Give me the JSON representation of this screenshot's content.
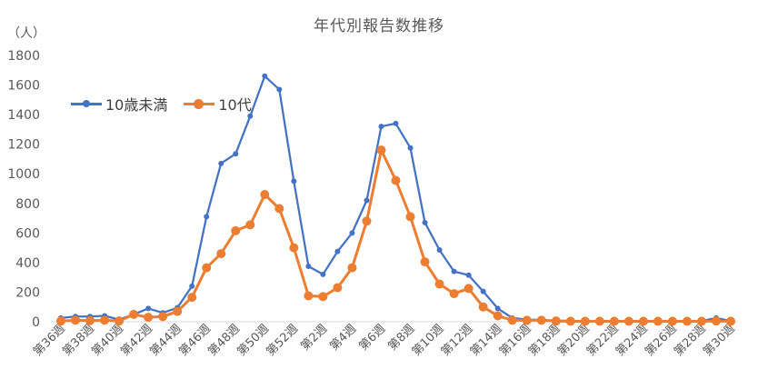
{
  "chart_data": {
    "type": "line",
    "title": "年代別報告数推移",
    "y_unit_label": "（人）",
    "ylim": [
      0,
      1800
    ],
    "yticks": [
      0,
      200,
      400,
      600,
      800,
      1000,
      1200,
      1400,
      1600,
      1800
    ],
    "grid": false,
    "legend_position": "top-left",
    "categories": [
      "第36週",
      "第37週",
      "第38週",
      "第39週",
      "第40週",
      "第41週",
      "第42週",
      "第43週",
      "第44週",
      "第45週",
      "第46週",
      "第47週",
      "第48週",
      "第49週",
      "第50週",
      "第51週",
      "第52週",
      "第1週",
      "第2週",
      "第3週",
      "第4週",
      "第5週",
      "第6週",
      "第7週",
      "第8週",
      "第9週",
      "第10週",
      "第11週",
      "第12週",
      "第13週",
      "第14週",
      "第15週",
      "第16週",
      "第17週",
      "第18週",
      "第19週",
      "第20週",
      "第21週",
      "第22週",
      "第23週",
      "第24週",
      "第25週",
      "第26週",
      "第27週",
      "第28週",
      "第29週",
      "第30週"
    ],
    "x_tick_labels": [
      "第36週",
      "",
      "第38週",
      "",
      "第40週",
      "",
      "第42週",
      "",
      "第44週",
      "",
      "第46週",
      "",
      "第48週",
      "",
      "第50週",
      "",
      "第52週",
      "",
      "第2週",
      "",
      "第4週",
      "",
      "第6週",
      "",
      "第8週",
      "",
      "第10週",
      "",
      "第12週",
      "",
      "第14週",
      "",
      "第16週",
      "",
      "第18週",
      "",
      "第20週",
      "",
      "第22週",
      "",
      "第24週",
      "",
      "第26週",
      "",
      "第28週",
      "",
      "第30週"
    ],
    "series": [
      {
        "name": "10歳未満",
        "color": "#4472C4",
        "values": [
          25,
          35,
          35,
          40,
          15,
          50,
          90,
          60,
          95,
          240,
          710,
          1070,
          1135,
          1390,
          1660,
          1570,
          950,
          375,
          320,
          475,
          600,
          820,
          1320,
          1340,
          1175,
          670,
          485,
          340,
          315,
          205,
          90,
          25,
          15,
          12,
          8,
          6,
          5,
          5,
          5,
          5,
          5,
          5,
          5,
          5,
          5,
          25,
          5
        ]
      },
      {
        "name": "10代",
        "color": "#ED7D31",
        "values": [
          5,
          10,
          8,
          10,
          5,
          50,
          30,
          35,
          70,
          165,
          365,
          460,
          615,
          655,
          860,
          765,
          500,
          175,
          170,
          230,
          365,
          680,
          1160,
          955,
          710,
          405,
          255,
          190,
          225,
          100,
          40,
          10,
          10,
          10,
          5,
          3,
          3,
          3,
          3,
          3,
          3,
          3,
          3,
          3,
          3,
          5,
          3
        ]
      }
    ]
  }
}
